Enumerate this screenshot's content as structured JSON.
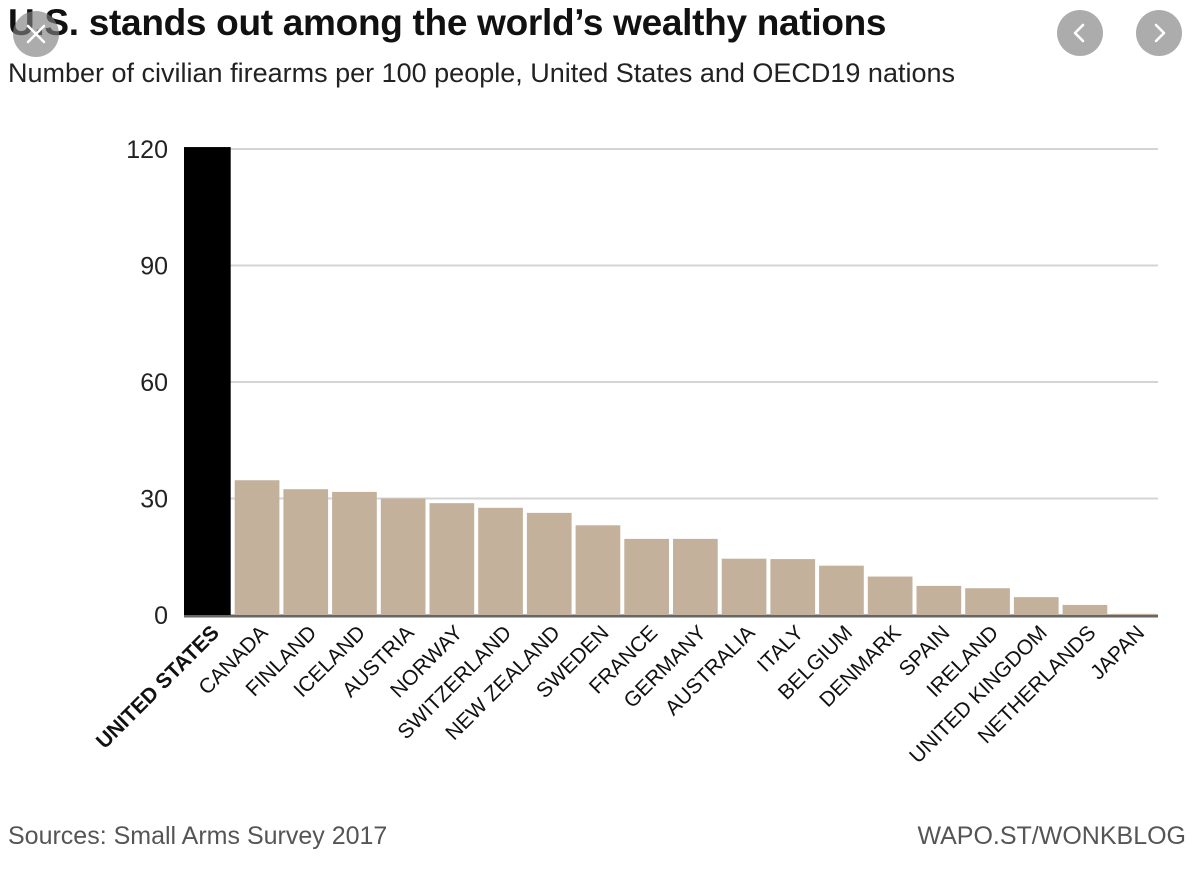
{
  "header": {
    "title": "U.S. stands out among the world’s wealthy nations",
    "subtitle": "Number of civilian firearms per 100 people, United States and OECD19 nations"
  },
  "controls": {
    "close_icon": "close-icon",
    "prev_icon": "chevron-left-icon",
    "next_icon": "chevron-right-icon"
  },
  "footer": {
    "source": "Sources: Small Arms Survey 2017",
    "credit": "WAPO.ST/WONKBLOG"
  },
  "colors": {
    "highlight": "#000000",
    "bar": "#c3b19c",
    "grid": "#d4d4d4",
    "axis": "#666666"
  },
  "chart_data": {
    "type": "bar",
    "title": "U.S. stands out among the world’s wealthy nations",
    "subtitle": "Number of civilian firearms per 100 people, United States and OECD19 nations",
    "xlabel": "",
    "ylabel": "",
    "ylim": [
      0,
      120
    ],
    "yticks": [
      0,
      30,
      60,
      90,
      120
    ],
    "grid": true,
    "highlight_category": "UNITED STATES",
    "categories": [
      "UNITED STATES",
      "CANADA",
      "FINLAND",
      "ICELAND",
      "AUSTRIA",
      "NORWAY",
      "SWITZERLAND",
      "NEW ZEALAND",
      "SWEDEN",
      "FRANCE",
      "GERMANY",
      "AUSTRALIA",
      "ITALY",
      "BELGIUM",
      "DENMARK",
      "SPAIN",
      "IRELAND",
      "UNITED KINGDOM",
      "NETHERLANDS",
      "JAPAN"
    ],
    "values": [
      120.5,
      34.7,
      32.4,
      31.7,
      30.0,
      28.8,
      27.6,
      26.3,
      23.1,
      19.6,
      19.6,
      14.5,
      14.4,
      12.7,
      9.9,
      7.5,
      6.9,
      4.6,
      2.6,
      0.3
    ]
  }
}
